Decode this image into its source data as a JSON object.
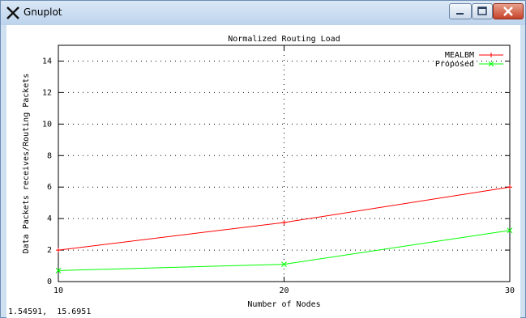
{
  "window": {
    "title": "Gnuplot",
    "icon": "x-gnuplot-icon",
    "controls": {
      "minimize": "minimize-icon",
      "maximize": "maximize-icon",
      "close": "close-icon"
    }
  },
  "status_bar": {
    "coordinates": "1.54591,  15.6951"
  },
  "colors": {
    "mealbm": "#ff0000",
    "proposed": "#00ff00",
    "grid": "#000000"
  },
  "chart_data": {
    "type": "line",
    "title": "Normalized Routing Load",
    "xlabel": "Number of Nodes",
    "ylabel": "Data Packets receives/Routing Packets",
    "xlim": [
      10,
      30
    ],
    "ylim": [
      0,
      15
    ],
    "x_ticks": [
      10,
      20,
      30
    ],
    "y_ticks": [
      0,
      2,
      4,
      6,
      8,
      10,
      12,
      14
    ],
    "grid": true,
    "legend_position": "top-right",
    "series": [
      {
        "name": "MEALBM",
        "x": [
          10,
          20,
          30
        ],
        "y": [
          2.0,
          3.75,
          6.0
        ]
      },
      {
        "name": "Proposed",
        "x": [
          10,
          20,
          30
        ],
        "y": [
          0.7,
          1.1,
          3.25
        ]
      }
    ]
  }
}
